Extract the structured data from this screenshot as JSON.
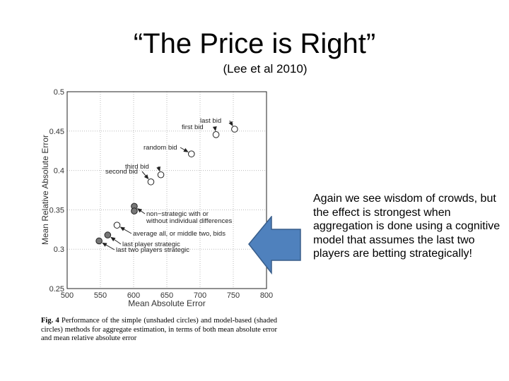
{
  "slide": {
    "title": "“The Price is Right”",
    "subtitle": "(Lee et al 2010)",
    "side_text": "Again we see wisdom of crowds, but the effect is strongest when aggregation is done using a cognitive model that assumes the last two players are betting strategically!"
  },
  "caption": {
    "label": "Fig. 4",
    "text": "Performance of the simple (unshaded circles) and model-based (shaded circles) methods for aggregate estimation, in terms of both mean absolute error and mean relative absolute error"
  },
  "arrow": {
    "color": "#4f81bd",
    "border": "#385d8a"
  },
  "chart_data": {
    "type": "scatter",
    "xlabel": "Mean Absolute Error",
    "ylabel": "Mean Relative Absolute Error",
    "xlim": [
      500,
      800
    ],
    "ylim": [
      0.25,
      0.5
    ],
    "xticks": [
      "500",
      "550",
      "600",
      "650",
      "700",
      "750",
      "800"
    ],
    "yticks": [
      "0.25",
      "0.3",
      "0.35",
      "0.4",
      "0.45",
      "0.5"
    ],
    "grid": true,
    "points": [
      {
        "x": 752,
        "y": 0.4525,
        "shaded": false
      },
      {
        "x": 724,
        "y": 0.4455,
        "shaded": false
      },
      {
        "x": 687,
        "y": 0.421,
        "shaded": false
      },
      {
        "x": 641,
        "y": 0.3945,
        "shaded": false
      },
      {
        "x": 626,
        "y": 0.3855,
        "shaded": false
      },
      {
        "x": 601,
        "y": 0.3545,
        "shaded": true
      },
      {
        "x": 601,
        "y": 0.3485,
        "shaded": true
      },
      {
        "x": 575,
        "y": 0.3305,
        "shaded": false
      },
      {
        "x": 561,
        "y": 0.318,
        "shaded": true
      },
      {
        "x": 548,
        "y": 0.3105,
        "shaded": true
      }
    ],
    "annotations": [
      {
        "lines": [
          "last bid"
        ]
      },
      {
        "lines": [
          "first bid"
        ]
      },
      {
        "lines": [
          "random bid"
        ]
      },
      {
        "lines": [
          "third bid"
        ]
      },
      {
        "lines": [
          "second bid"
        ]
      },
      {
        "lines": [
          "non−strategic with or",
          "without individual differences"
        ]
      },
      {
        "lines": [
          "average all, or middle two, bids"
        ]
      },
      {
        "lines": [
          "last player strategic"
        ]
      },
      {
        "lines": [
          "last two players strategic"
        ]
      }
    ]
  }
}
